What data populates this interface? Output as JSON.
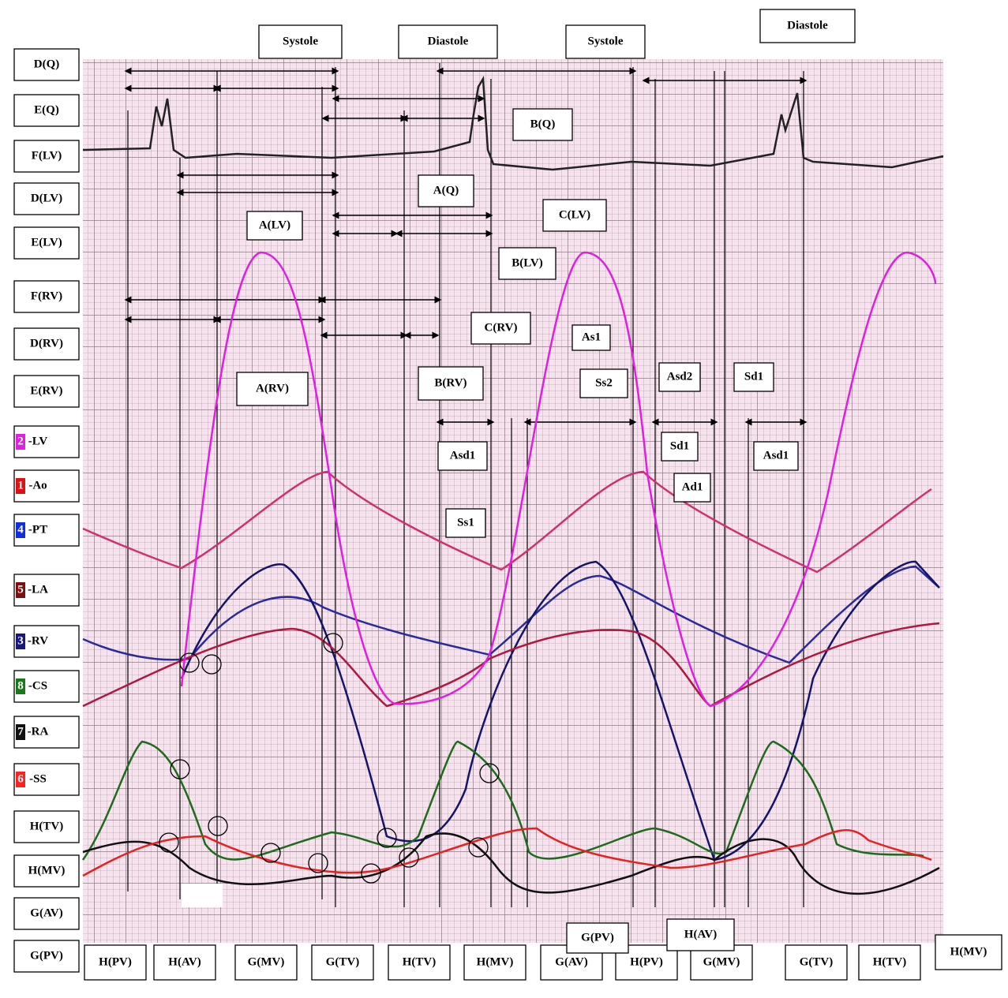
{
  "top_callouts": [
    "Systole",
    "Diastole",
    "Systole",
    "Diastole"
  ],
  "left_labels": [
    "D(Q)",
    "E(Q)",
    "F(LV)",
    "D(LV)",
    "E(LV)",
    "F(RV)",
    "D(RV)",
    "E(RV)"
  ],
  "legend": [
    {
      "number": "2",
      "label": "-LV",
      "color": "#e020e0"
    },
    {
      "number": "1",
      "label": "-Ao",
      "color": "#e01010"
    },
    {
      "number": "4",
      "label": "-PT",
      "color": "#1030e0"
    },
    {
      "number": "5",
      "label": "-LA",
      "color": "#7a1010"
    },
    {
      "number": "3",
      "label": "-RV",
      "color": "#18187a"
    },
    {
      "number": "8",
      "label": "-CS",
      "color": "#1a7a1a"
    },
    {
      "number": "7",
      "label": "-RA",
      "color": "#111111"
    },
    {
      "number": "6",
      "label": "-SS",
      "color": "#ff2020"
    }
  ],
  "valve_labels": [
    "H(TV)",
    "H(MV)",
    "G(AV)",
    "G(PV)"
  ],
  "callouts": [
    "B(Q)",
    "A(Q)",
    "A(LV)",
    "C(LV)",
    "B(LV)",
    "C(RV)",
    "A(RV)",
    "B(RV)",
    "As1",
    "Ss2",
    "Asd2",
    "Sd1",
    "Asd1",
    "Ss1",
    "Sd1",
    "Ad1",
    "Asd1"
  ],
  "bottom_labels": [
    "H(PV)",
    "H(AV)",
    "G(MV)",
    "G(TV)",
    "H(TV)",
    "H(MV)",
    "G(AV)",
    "H(PV)",
    "G(MV)",
    "G(TV)",
    "H(TV)",
    "H(MV)"
  ],
  "raised_labels": [
    "G(PV)",
    "H(AV)"
  ]
}
